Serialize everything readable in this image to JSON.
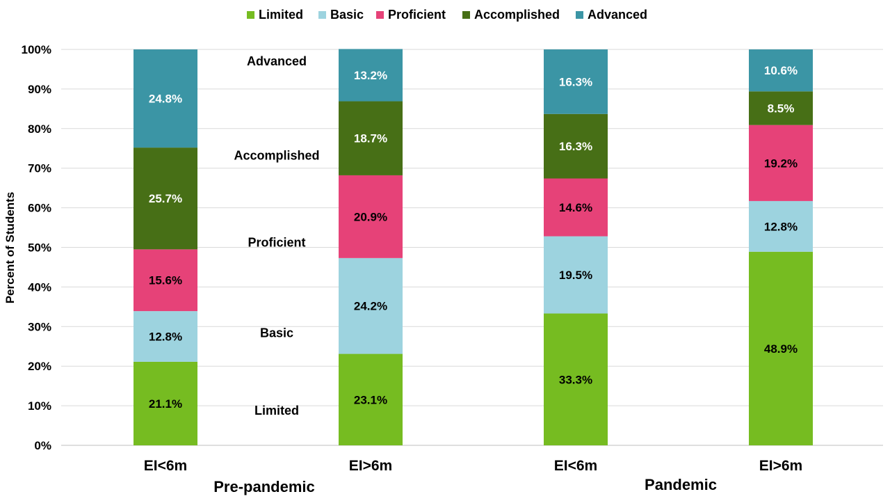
{
  "chart_data": {
    "type": "bar",
    "stacked": true,
    "ylabel": "Percent of Students",
    "ylim": [
      0,
      100
    ],
    "yticks": [
      "0%",
      "10%",
      "20%",
      "30%",
      "40%",
      "50%",
      "60%",
      "70%",
      "80%",
      "90%",
      "100%"
    ],
    "grid": true,
    "legend_position": "top",
    "categories": [
      "EI<6m",
      "EI>6m",
      "EI<6m",
      "EI>6m"
    ],
    "groups": [
      {
        "label": "Pre-pandemic",
        "categories": [
          0,
          1
        ]
      },
      {
        "label": "Pandemic",
        "categories": [
          2,
          3
        ]
      }
    ],
    "series": [
      {
        "name": "Limited",
        "color": "#76bc21",
        "values": [
          21.1,
          23.1,
          33.3,
          48.9
        ]
      },
      {
        "name": "Basic",
        "color": "#9dd3df",
        "values": [
          12.8,
          24.2,
          19.5,
          12.8
        ]
      },
      {
        "name": "Proficient",
        "color": "#e64278",
        "values": [
          15.6,
          20.9,
          14.6,
          19.2
        ]
      },
      {
        "name": "Accomplished",
        "color": "#476f16",
        "values": [
          25.7,
          18.7,
          16.3,
          8.5
        ]
      },
      {
        "name": "Advanced",
        "color": "#3b95a5",
        "values": [
          24.8,
          13.2,
          16.3,
          10.6
        ]
      }
    ],
    "label_colors": [
      "#000000",
      "#000000",
      "#000000",
      "#ffffff",
      "#ffffff"
    ],
    "annotations": [
      "Advanced",
      "Accomplished",
      "Proficient",
      "Basic",
      "Limited"
    ],
    "annotation_values": [
      97,
      73.2,
      51.2,
      28.4,
      8.8
    ]
  }
}
